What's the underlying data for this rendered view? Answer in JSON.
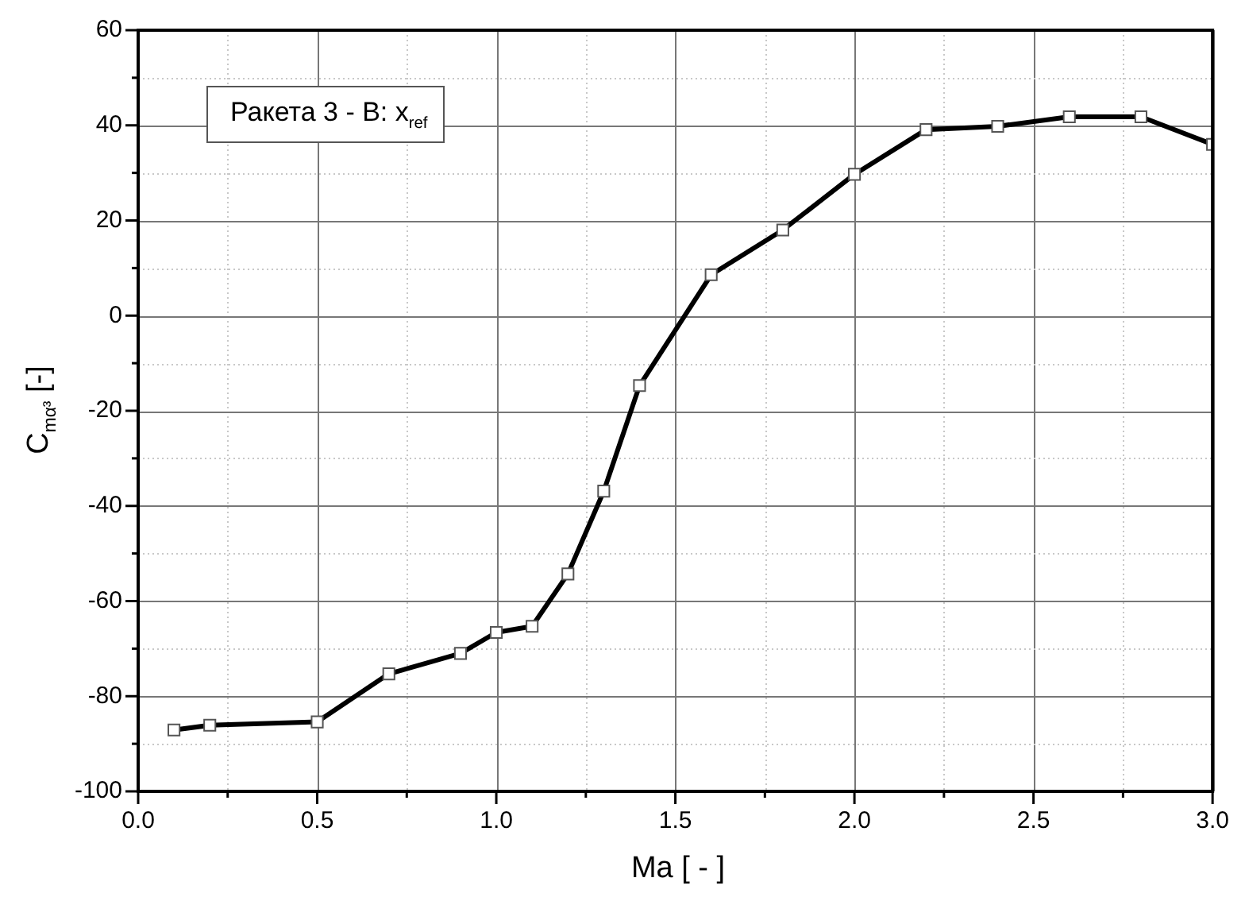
{
  "chart_data": {
    "type": "line",
    "xlabel": "Ma  [ - ]",
    "ylabel": "C$_{mα³}$  [-]",
    "annotations": [
      "Ракета 3 - В: x$_{ref}$"
    ],
    "x": [
      0.1,
      0.2,
      0.5,
      0.7,
      0.9,
      1.0,
      1.1,
      1.2,
      1.3,
      1.4,
      1.6,
      1.8,
      2.0,
      2.2,
      2.4,
      2.6,
      2.8,
      3.0
    ],
    "series": [
      {
        "color": "#000000",
        "values": [
          -87.1,
          -86.1,
          -85.4,
          -75.3,
          -71,
          -66.6,
          -65.3,
          -54.3,
          -36.9,
          -14.7,
          8.6,
          18,
          29.7,
          39.1,
          39.8,
          41.8,
          41.8,
          36
        ]
      }
    ],
    "xlim": [
      0,
      3
    ],
    "ylim": [
      -100,
      60
    ],
    "xticks": [
      {
        "value": 0,
        "label": "0.0"
      },
      {
        "value": 0.25,
        "label": null
      },
      0.5,
      {
        "value": 0.75,
        "label": null
      },
      {
        "value": 1,
        "label": "1.0"
      },
      {
        "value": 1.25,
        "label": null
      },
      1.5,
      {
        "value": 1.75,
        "label": null
      },
      {
        "value": 2,
        "label": "2.0"
      },
      {
        "value": 2.25,
        "label": null
      },
      2.5,
      {
        "value": 2.75,
        "label": null
      },
      {
        "value": 3,
        "label": "3.0"
      }
    ],
    "yticks": [
      -100,
      {
        "value": -90,
        "label": null
      },
      -80,
      {
        "value": -70,
        "label": null
      },
      -60,
      {
        "value": -50,
        "label": null
      },
      -40,
      {
        "value": -30,
        "label": null
      },
      -20,
      {
        "value": -10,
        "label": null
      },
      0,
      {
        "value": 10,
        "label": null
      },
      20,
      {
        "value": 30,
        "label": null
      },
      40,
      {
        "value": 50,
        "label": null
      },
      60
    ],
    "grid": true,
    "legend": false,
    "marker": "square",
    "line_style": "solid"
  }
}
